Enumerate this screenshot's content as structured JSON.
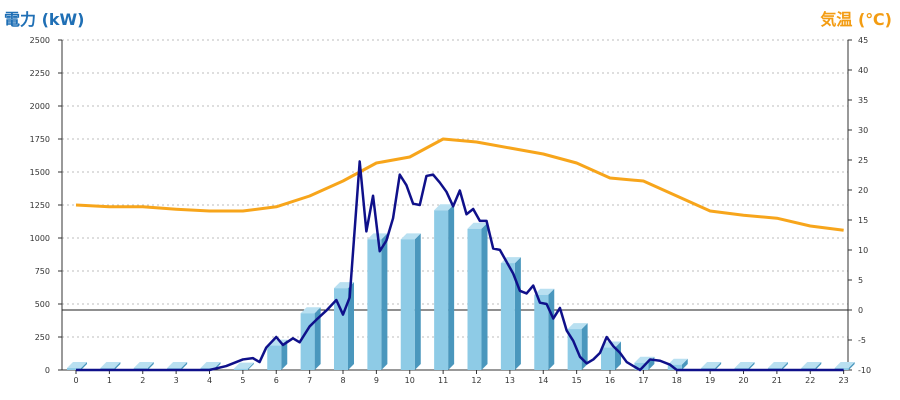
{
  "chart_data": {
    "type": "bar+line",
    "left_axis_title": "電力 (kW)",
    "right_axis_title": "気温 (℃)",
    "categories": [
      "0",
      "1",
      "2",
      "3",
      "4",
      "5",
      "6",
      "7",
      "8",
      "9",
      "10",
      "11",
      "12",
      "13",
      "14",
      "15",
      "16",
      "17",
      "18",
      "19",
      "20",
      "21",
      "22",
      "23"
    ],
    "y_left_range": [
      0,
      2500
    ],
    "y_left_ticks": [
      0,
      250,
      500,
      750,
      1000,
      1250,
      1500,
      1750,
      2000,
      2250,
      2500
    ],
    "y_right_range": [
      -10,
      45
    ],
    "y_right_ticks": [
      -10,
      -5,
      0,
      5,
      10,
      15,
      20,
      25,
      30,
      35,
      40,
      45
    ],
    "grid": "horizontal dotted",
    "series": [
      {
        "type": "bar",
        "axis": "left",
        "values": [
          15,
          15,
          15,
          15,
          15,
          10,
          185,
          430,
          620,
          990,
          990,
          1210,
          1070,
          810,
          570,
          310,
          170,
          55,
          40,
          15,
          15,
          15,
          15,
          15
        ]
      },
      {
        "type": "line",
        "axis": "left",
        "x": [
          0,
          1,
          2,
          3,
          4,
          4.5,
          5,
          5.3,
          5.5,
          5.7,
          6,
          6.2,
          6.5,
          6.7,
          7,
          7.2,
          7.5,
          7.8,
          8,
          8.2,
          8.5,
          8.7,
          8.9,
          9.1,
          9.3,
          9.5,
          9.7,
          9.9,
          10.1,
          10.3,
          10.5,
          10.7,
          10.9,
          11.1,
          11.3,
          11.5,
          11.7,
          11.9,
          12.1,
          12.3,
          12.5,
          12.7,
          12.9,
          13.1,
          13.3,
          13.5,
          13.7,
          13.9,
          14.1,
          14.3,
          14.5,
          14.7,
          14.9,
          15.1,
          15.3,
          15.5,
          15.7,
          15.9,
          16.1,
          16.3,
          16.5,
          16.7,
          16.9,
          17.2,
          17.5,
          17.8,
          18,
          19,
          20,
          21,
          22,
          23
        ],
        "values": [
          0,
          0,
          0,
          0,
          0,
          30,
          80,
          90,
          60,
          170,
          250,
          190,
          240,
          210,
          330,
          380,
          450,
          530,
          420,
          550,
          1580,
          1050,
          1320,
          900,
          980,
          1150,
          1480,
          1400,
          1260,
          1250,
          1470,
          1480,
          1420,
          1350,
          1240,
          1360,
          1180,
          1220,
          1130,
          1130,
          920,
          910,
          820,
          730,
          600,
          580,
          640,
          510,
          500,
          390,
          470,
          300,
          220,
          100,
          50,
          80,
          130,
          250,
          180,
          130,
          60,
          30,
          0,
          80,
          70,
          40,
          0,
          0,
          0,
          0,
          0,
          0
        ]
      },
      {
        "type": "line",
        "axis": "right",
        "values": [
          17.5,
          17.2,
          17.2,
          16.8,
          16.5,
          16.5,
          17.2,
          19.0,
          21.5,
          24.5,
          25.5,
          28.5,
          28.0,
          27.0,
          26.0,
          24.5,
          22.0,
          21.5,
          19.0,
          16.5,
          15.8,
          15.3,
          14.0,
          13.3
        ]
      }
    ],
    "colors": {
      "bar_front": "#8ecbe6",
      "bar_side": "#4a97bd",
      "bar_top": "#b9e0f1",
      "power_line": "#0f108a",
      "temp_line": "#f7a51b",
      "left_title": "#1f6fb5",
      "right_title": "#f39c12"
    }
  }
}
